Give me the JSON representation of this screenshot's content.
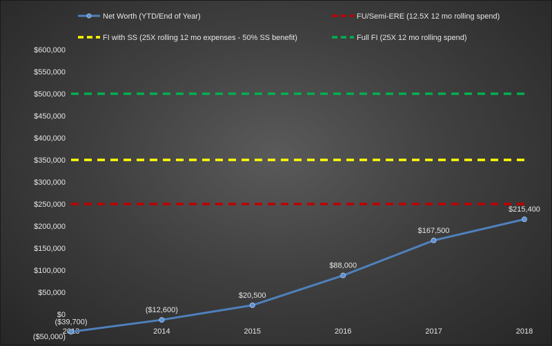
{
  "chart_data": {
    "type": "line",
    "categories": [
      "2013",
      "2014",
      "2015",
      "2016",
      "2017",
      "2018"
    ],
    "ylim": [
      -50000,
      600000
    ],
    "y_ticks": [
      "($50,000)",
      "$0",
      "$50,000",
      "$100,000",
      "$150,000",
      "$200,000",
      "$250,000",
      "$300,000",
      "$350,000",
      "$400,000",
      "$450,000",
      "$500,000",
      "$550,000",
      "$600,000"
    ],
    "y_tick_values": [
      -50000,
      0,
      50000,
      100000,
      150000,
      200000,
      250000,
      300000,
      350000,
      400000,
      450000,
      500000,
      550000,
      600000
    ],
    "grid": false,
    "legend_position": "top",
    "series": [
      {
        "name": "Net Worth (YTD/End of Year)",
        "style": "line-marker",
        "color": "#4f81bd",
        "values": [
          -39700,
          -12600,
          20500,
          88000,
          167500,
          215400
        ],
        "labels": [
          "($39,700)",
          "($12,600)",
          "$20,500",
          "$88,000",
          "$167,500",
          "$215,400"
        ]
      },
      {
        "name": "FU/Semi-ERE (12.5X 12 mo rolling spend)",
        "style": "dashed",
        "color": "#c00000",
        "values": [
          250000,
          250000,
          250000,
          250000,
          250000,
          250000
        ]
      },
      {
        "name": "FI with SS  (25X rolling 12 mo expenses - 50% SS benefit)",
        "style": "dashed",
        "color": "#ffff00",
        "values": [
          350000,
          350000,
          350000,
          350000,
          350000,
          350000
        ]
      },
      {
        "name": "Full FI  (25X 12 mo rolling spend)",
        "style": "dashed",
        "color": "#00b050",
        "values": [
          500000,
          500000,
          500000,
          500000,
          500000,
          500000
        ]
      }
    ]
  }
}
